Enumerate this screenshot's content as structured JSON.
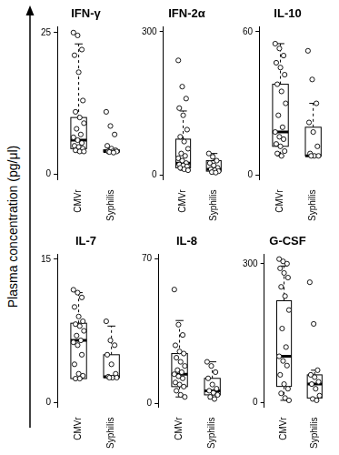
{
  "y_label": "Plasma concentration (pg/μl)",
  "chart_data": [
    {
      "type": "box",
      "title": "IFN-γ",
      "categories": [
        "CMVr",
        "Syphilis"
      ],
      "color": "#000000",
      "marker": "circle",
      "values": [
        [
          25,
          24.5,
          22,
          21,
          18,
          13,
          11,
          10,
          9,
          8,
          7,
          6.5,
          6,
          5.5,
          5,
          4.8,
          4.5,
          4.2,
          4,
          4
        ],
        [
          11,
          8.5,
          7,
          5,
          4.5,
          4.2,
          4,
          4,
          4,
          3.9,
          3.8
        ]
      ],
      "stats": [
        {
          "whisker_low": 4,
          "q1": 4.5,
          "median": 6,
          "q3": 10,
          "whisker_high": 23
        },
        {
          "whisker_low": 3.8,
          "q1": 3.9,
          "median": 4,
          "q3": 4.3,
          "whisker_high": 4.5
        }
      ],
      "ylim": [
        -1,
        26
      ],
      "yticks": [
        0,
        25
      ]
    },
    {
      "type": "box",
      "title": "IFN-2α",
      "categories": [
        "CMVr",
        "Syphilis"
      ],
      "color": "#000000",
      "marker": "circle",
      "values": [
        [
          240,
          185,
          160,
          140,
          125,
          95,
          80,
          70,
          55,
          45,
          40,
          35,
          30,
          25,
          22,
          20,
          18,
          15,
          12,
          10
        ],
        [
          45,
          38,
          30,
          25,
          20,
          15,
          12,
          10,
          8,
          6,
          5
        ]
      ],
      "stats": [
        {
          "whisker_low": 10,
          "q1": 15,
          "median": 25,
          "q3": 75,
          "whisker_high": 134
        },
        {
          "whisker_low": 5,
          "q1": 8,
          "median": 12,
          "q3": 30,
          "whisker_high": 45
        }
      ],
      "ylim": [
        -10,
        310
      ],
      "yticks": [
        0,
        300
      ]
    },
    {
      "type": "box",
      "title": "IL-10",
      "categories": [
        "CMVr",
        "Syphilis"
      ],
      "color": "#000000",
      "marker": "circle",
      "values": [
        [
          55,
          53,
          50,
          47,
          45,
          42,
          38,
          35,
          30,
          25,
          20,
          18,
          16,
          15,
          13,
          12,
          10,
          9,
          8
        ],
        [
          52,
          40,
          30,
          22,
          18,
          12,
          9,
          8,
          8,
          8
        ]
      ],
      "stats": [
        {
          "whisker_low": 8,
          "q1": 12,
          "median": 18,
          "q3": 38,
          "whisker_high": 55
        },
        {
          "whisker_low": 8,
          "q1": 8,
          "median": 8,
          "q3": 20,
          "whisker_high": 30
        }
      ],
      "ylim": [
        -2,
        62
      ],
      "yticks": [
        0,
        60
      ]
    },
    {
      "type": "box",
      "title": "IL-7",
      "categories": [
        "CMVr",
        "Syphilis"
      ],
      "color": "#000000",
      "marker": "circle",
      "values": [
        [
          11.8,
          11.5,
          11,
          10,
          9,
          8.5,
          8.2,
          8,
          7.5,
          7,
          6.5,
          6.3,
          6,
          5,
          4,
          3,
          2.8,
          2.5,
          2.5
        ],
        [
          8.5,
          6.5,
          6,
          5,
          4,
          3,
          2.7,
          2.6,
          2.6,
          2.6
        ]
      ],
      "stats": [
        {
          "whisker_low": 2.5,
          "q1": 2.5,
          "median": 6.5,
          "q3": 8.3,
          "whisker_high": 11.5
        },
        {
          "whisker_low": 2.6,
          "q1": 2.6,
          "median": 2.7,
          "q3": 5,
          "whisker_high": 8
        }
      ],
      "ylim": [
        -0.5,
        15.5
      ],
      "yticks": [
        0,
        15
      ]
    },
    {
      "type": "box",
      "title": "IL-8",
      "categories": [
        "CMVr",
        "Syphilis"
      ],
      "color": "#000000",
      "marker": "circle",
      "values": [
        [
          55,
          38,
          33,
          28,
          25,
          24,
          22,
          20,
          18,
          16,
          15,
          14,
          13,
          12,
          10,
          9,
          8,
          6,
          4,
          3
        ],
        [
          20,
          18,
          15,
          12,
          9,
          7,
          6,
          5,
          4,
          3,
          2
        ]
      ],
      "stats": [
        {
          "whisker_low": 3,
          "q1": 8,
          "median": 14,
          "q3": 24,
          "whisker_high": 40
        },
        {
          "whisker_low": 2,
          "q1": 4,
          "median": 6,
          "q3": 12,
          "whisker_high": 20
        }
      ],
      "ylim": [
        -2,
        72
      ],
      "yticks": [
        0,
        70
      ]
    },
    {
      "type": "box",
      "title": "G-CSF",
      "categories": [
        "CMVr",
        "Syphilis"
      ],
      "color": "#000000",
      "marker": "circle",
      "values": [
        [
          310,
          305,
          300,
          290,
          280,
          270,
          250,
          230,
          200,
          160,
          120,
          100,
          90,
          80,
          60,
          40,
          30,
          20,
          10,
          5
        ],
        [
          260,
          170,
          70,
          60,
          55,
          45,
          40,
          30,
          15,
          8,
          5
        ]
      ],
      "stats": [
        {
          "whisker_low": 5,
          "q1": 35,
          "median": 100,
          "q3": 220,
          "whisker_high": 295
        },
        {
          "whisker_low": 5,
          "q1": 10,
          "median": 40,
          "q3": 60,
          "whisker_high": 70
        }
      ],
      "ylim": [
        -10,
        320
      ],
      "yticks": [
        0,
        300
      ]
    }
  ]
}
